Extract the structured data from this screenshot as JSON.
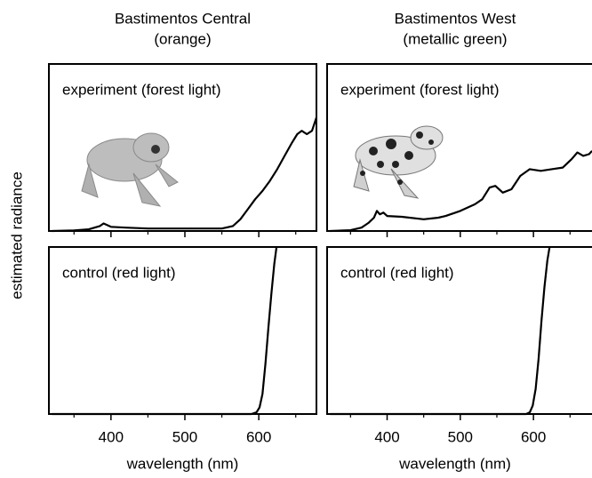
{
  "ylabel": "estimated radiance",
  "chart_data": [
    {
      "type": "line",
      "title": "Bastimentos Central",
      "subtitle": "(orange)",
      "annotation": "experiment (forest light)",
      "x": [
        320,
        350,
        370,
        385,
        390,
        395,
        400,
        420,
        450,
        500,
        550,
        565,
        575,
        585,
        595,
        605,
        615,
        625,
        635,
        645,
        652,
        658,
        665,
        672,
        678
      ],
      "values": [
        0,
        0.003,
        0.01,
        0.03,
        0.045,
        0.035,
        0.025,
        0.02,
        0.015,
        0.015,
        0.015,
        0.03,
        0.07,
        0.13,
        0.19,
        0.24,
        0.3,
        0.37,
        0.45,
        0.53,
        0.58,
        0.6,
        0.58,
        0.6,
        0.68
      ],
      "color": "#000000",
      "xlim": [
        316,
        678
      ],
      "ylim": [
        0,
        1
      ],
      "xticks": [
        400,
        500,
        600
      ],
      "xminor": [
        350,
        450,
        550,
        650
      ],
      "show_xtick_labels": false
    },
    {
      "type": "line",
      "title": "Bastimentos West",
      "subtitle": "(metallic green)",
      "annotation": "experiment (forest light)",
      "x": [
        322,
        350,
        365,
        375,
        382,
        386,
        390,
        395,
        400,
        420,
        450,
        470,
        480,
        500,
        520,
        530,
        540,
        548,
        558,
        570,
        582,
        595,
        610,
        625,
        640,
        652,
        660,
        668,
        676,
        680
      ],
      "values": [
        0,
        0.005,
        0.02,
        0.05,
        0.08,
        0.12,
        0.1,
        0.11,
        0.09,
        0.085,
        0.07,
        0.08,
        0.09,
        0.12,
        0.16,
        0.19,
        0.26,
        0.27,
        0.23,
        0.25,
        0.33,
        0.37,
        0.36,
        0.37,
        0.38,
        0.43,
        0.47,
        0.45,
        0.46,
        0.48
      ],
      "color": "#000000",
      "xlim": [
        318,
        680
      ],
      "ylim": [
        0,
        1
      ],
      "xticks": [
        400,
        500,
        600
      ],
      "xminor": [
        350,
        450,
        550,
        650
      ],
      "show_xtick_labels": false
    },
    {
      "type": "line",
      "annotation": "control (red light)",
      "xlabel": "wavelength (nm)",
      "x": [
        320,
        400,
        500,
        590,
        597,
        601,
        605,
        609,
        613,
        617,
        621,
        624
      ],
      "values": [
        0,
        0,
        0,
        0,
        0.01,
        0.04,
        0.12,
        0.3,
        0.52,
        0.72,
        0.9,
        1
      ],
      "color": "#000000",
      "xlim": [
        316,
        678
      ],
      "ylim": [
        0,
        1
      ],
      "xticks": [
        400,
        500,
        600
      ],
      "xminor": [
        350,
        450,
        550,
        650
      ],
      "show_xtick_labels": true
    },
    {
      "type": "line",
      "annotation": "control (red light)",
      "xlabel": "wavelength (nm)",
      "x": [
        322,
        400,
        500,
        590,
        595,
        599,
        603,
        607,
        611,
        615,
        619,
        622
      ],
      "values": [
        0,
        0,
        0,
        0,
        0.01,
        0.05,
        0.15,
        0.33,
        0.56,
        0.76,
        0.92,
        1
      ],
      "color": "#000000",
      "xlim": [
        318,
        680
      ],
      "ylim": [
        0,
        1
      ],
      "xticks": [
        400,
        500,
        600
      ],
      "xminor": [
        350,
        450,
        550,
        650
      ],
      "show_xtick_labels": true
    }
  ]
}
